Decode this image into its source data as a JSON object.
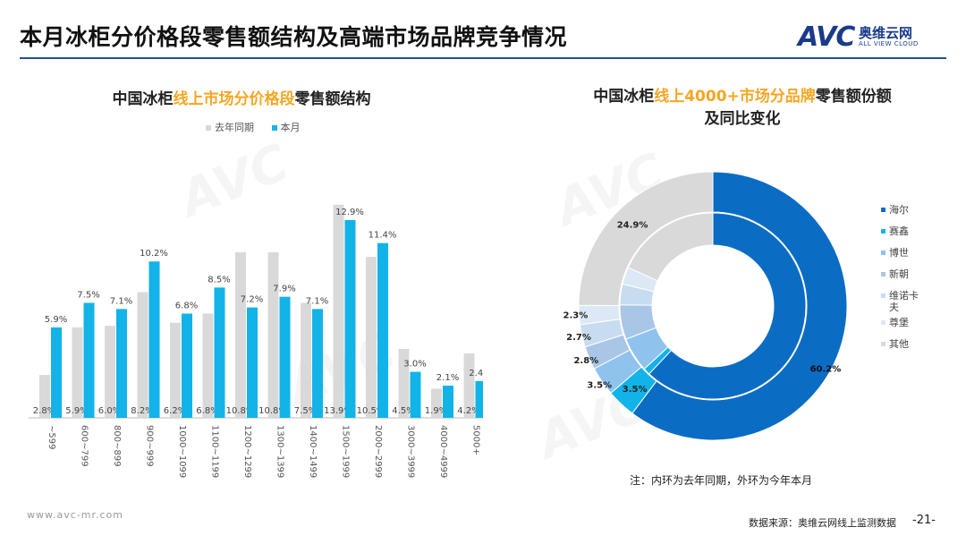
{
  "page": {
    "title": "本月冰柜分价格段零售额结构及高端市场品牌竞争情况",
    "logo_mark": "AVC",
    "logo_cn": "奥维云网",
    "logo_en": "ALL VIEW CLOUD",
    "watermark": "AVC",
    "url": "www.avc-mr.com",
    "source": "数据来源：奥维云网线上监测数据",
    "page_number": "-21-",
    "note": "注：内环为去年同期，外环为今年本月"
  },
  "bar_panel": {
    "title_pre": "中国冰柜",
    "title_hl": "线上市场分价格段",
    "title_post": "零售额结构"
  },
  "donut_panel": {
    "title_pre": "中国冰柜",
    "title_hl": "线上4000+市场分品牌",
    "title_post": "零售额份额",
    "title_line2": "及同比变化"
  },
  "colors": {
    "last_year": "#d9d9d9",
    "this_month": "#12b3e8",
    "accent": "#f5a623",
    "rule": "#1f4fa0"
  },
  "chart_data": [
    {
      "type": "bar",
      "categories": [
        "~599",
        "600~799",
        "800~899",
        "900~999",
        "1000~1099",
        "1100~1199",
        "1200~1299",
        "1300~1399",
        "1400~1499",
        "1500~1999",
        "2000~2999",
        "3000~3999",
        "4000~4999",
        "5000+"
      ],
      "series": [
        {
          "name": "去年同期",
          "color": "#d9d9d9",
          "values": [
            2.8,
            5.9,
            6.0,
            8.2,
            6.2,
            6.8,
            10.8,
            10.8,
            7.5,
            13.9,
            10.5,
            4.5,
            1.9,
            4.2
          ],
          "labels": [
            "2.8%",
            "5.9%",
            "6.0%",
            "8.2%",
            "6.2%",
            "6.8%",
            "10.8%",
            "10.8%",
            "7.5%",
            "13.9%",
            "10.5%",
            "4.5%",
            "1.9%",
            "4.2%"
          ]
        },
        {
          "name": "本月",
          "color": "#12b3e8",
          "values": [
            5.9,
            7.5,
            7.1,
            10.2,
            6.8,
            8.5,
            7.2,
            7.9,
            7.1,
            12.9,
            11.4,
            3.0,
            2.1,
            2.4
          ],
          "labels": [
            "5.9%",
            "7.5%",
            "7.1%",
            "10.2%",
            "6.8%",
            "8.5%",
            "7.2%",
            "7.9%",
            "7.1%",
            "12.9%",
            "11.4%",
            "3.0%",
            "2.1%",
            "2.4%"
          ]
        }
      ],
      "ylim": [
        0,
        15
      ],
      "legend": "top"
    },
    {
      "type": "pie",
      "style": "double-donut",
      "categories": [
        "海尔",
        "赛鑫",
        "博世",
        "新朝",
        "维诺卡夫",
        "尊堡",
        "其他"
      ],
      "legend_labels": [
        "海尔",
        "赛鑫",
        "博世",
        "新朝",
        "维诺卡\n夫",
        "尊堡",
        "其他"
      ],
      "colors": [
        "#0b6cc4",
        "#12b3e8",
        "#8fc3ee",
        "#a9c6e6",
        "#c8dcf0",
        "#dce8f5",
        "#d9d9d9"
      ],
      "outer": {
        "name": "本月",
        "values": [
          60.2,
          3.5,
          3.5,
          2.8,
          2.7,
          2.3,
          24.9
        ],
        "labels": [
          "60.2%",
          "3.5%",
          "3.5%",
          "2.8%",
          "2.7%",
          "2.3%",
          "24.9%"
        ]
      },
      "inner": {
        "name": "去年同期",
        "values": [
          62.0,
          1.2,
          6.0,
          6.0,
          3.6,
          3.0,
          18.2
        ]
      },
      "legend": "right"
    }
  ]
}
